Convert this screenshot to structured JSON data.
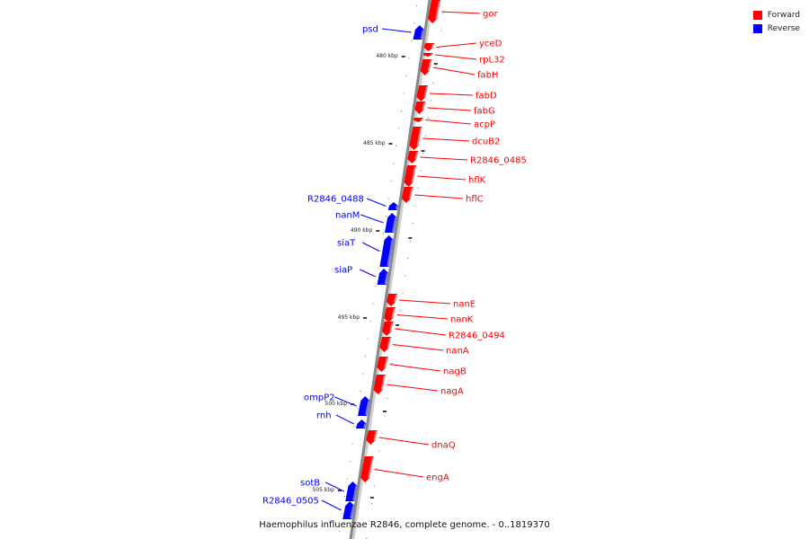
{
  "legend": [
    {
      "label": "Forward",
      "color": "#ff0000"
    },
    {
      "label": "Reverse",
      "color": "#0000ff"
    }
  ],
  "caption": "Haemophilus influenzae R2846, complete genome. - 0..1819370",
  "colors": {
    "forward": "#ff0000",
    "reverse": "#0000ff",
    "backbone": "#888888"
  },
  "ticks": [
    {
      "label": "480 kbp"
    },
    {
      "label": "485 kbp"
    },
    {
      "label": "490 kbp"
    },
    {
      "label": "495 kbp"
    },
    {
      "label": "500 kbp"
    },
    {
      "label": "505 kbp"
    }
  ],
  "genes": [
    {
      "name": "gor",
      "strand": "forward"
    },
    {
      "name": "psd",
      "strand": "reverse"
    },
    {
      "name": "yceD",
      "strand": "forward"
    },
    {
      "name": "rpL32",
      "strand": "forward"
    },
    {
      "name": "fabH",
      "strand": "forward"
    },
    {
      "name": "fabD",
      "strand": "forward"
    },
    {
      "name": "fabG",
      "strand": "forward"
    },
    {
      "name": "acpP",
      "strand": "forward"
    },
    {
      "name": "dcuB2",
      "strand": "forward"
    },
    {
      "name": "R2846_0485",
      "strand": "forward"
    },
    {
      "name": "hflK",
      "strand": "forward"
    },
    {
      "name": "hflC",
      "strand": "forward"
    },
    {
      "name": "R2846_0488",
      "strand": "reverse"
    },
    {
      "name": "nanM",
      "strand": "reverse"
    },
    {
      "name": "siaT",
      "strand": "reverse"
    },
    {
      "name": "siaP",
      "strand": "reverse"
    },
    {
      "name": "nanE",
      "strand": "forward"
    },
    {
      "name": "nanK",
      "strand": "forward"
    },
    {
      "name": "R2846_0494",
      "strand": "forward"
    },
    {
      "name": "nanA",
      "strand": "forward"
    },
    {
      "name": "nagB",
      "strand": "forward"
    },
    {
      "name": "nagA",
      "strand": "forward"
    },
    {
      "name": "ompP2",
      "strand": "reverse"
    },
    {
      "name": "rnh",
      "strand": "reverse"
    },
    {
      "name": "dnaQ",
      "strand": "forward"
    },
    {
      "name": "engA",
      "strand": "forward"
    },
    {
      "name": "sotB",
      "strand": "reverse"
    },
    {
      "name": "R2846_0505",
      "strand": "reverse"
    }
  ]
}
